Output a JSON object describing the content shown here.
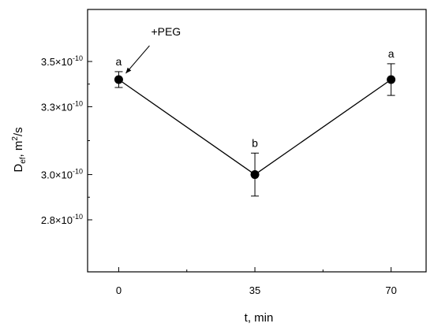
{
  "chart_data": {
    "type": "scatter",
    "xlabel": "t, min",
    "ylabel": {
      "main": "D",
      "sub": "ef",
      "rest": ", m",
      "sup": "2",
      "tail": "/s"
    },
    "x_ticks": [
      0,
      35,
      70
    ],
    "y_ticks": [
      {
        "value": 2.8e-10,
        "mantissa": "2.8×10",
        "exponent": "-10"
      },
      {
        "value": 3e-10,
        "mantissa": "3.0×10",
        "exponent": "-10"
      },
      {
        "value": 3.3e-10,
        "mantissa": "3.3×10",
        "exponent": "-10"
      },
      {
        "value": 3.5e-10,
        "mantissa": "3.5×10",
        "exponent": "-10"
      }
    ],
    "xlim": [
      -8,
      79
    ],
    "ylim": [
      2.57e-10,
      3.73e-10
    ],
    "series": [
      {
        "x": [
          0,
          35,
          70
        ],
        "y": [
          3.42e-10,
          3e-10,
          3.42e-10
        ],
        "err": [
          3.5e-12,
          9.5e-12,
          7e-12
        ],
        "labels": [
          "a",
          "b",
          "a"
        ],
        "marker": "filled-circle",
        "line": true
      }
    ],
    "annotations": [
      {
        "text": "+PEG",
        "arrow_to": {
          "x": 0,
          "y": 3.42e-10
        }
      }
    ],
    "colors": {
      "line": "#000000",
      "marker": "#000000"
    }
  }
}
